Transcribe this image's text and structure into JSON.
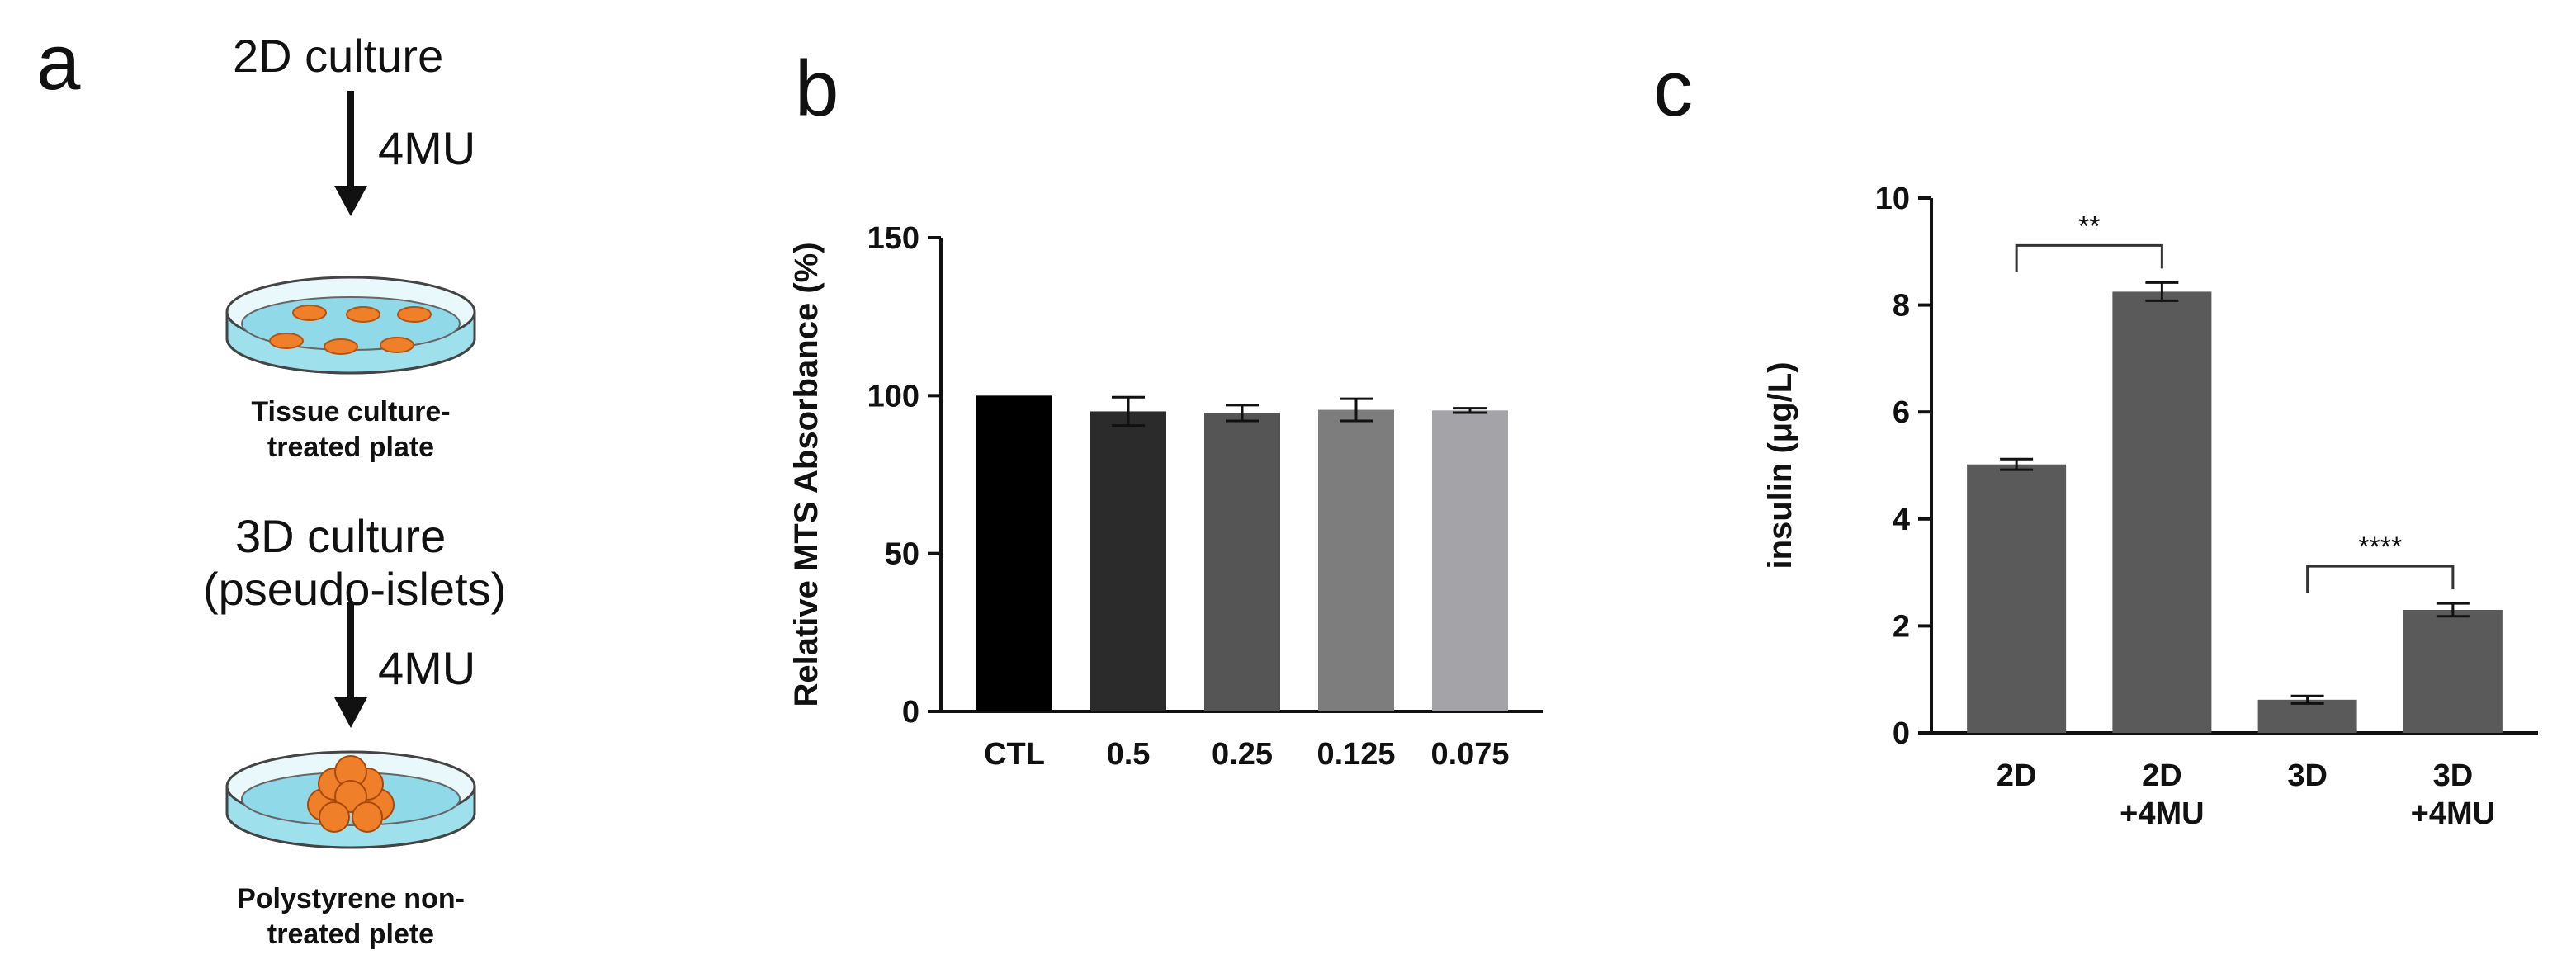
{
  "panel_a": {
    "letter": "a",
    "step1_label": "2D culture",
    "arrow1_label": "4MU",
    "dish1_caption_line1": "Tissue culture-",
    "dish1_caption_line2": "treated plate",
    "step2_label_line1": "3D culture",
    "step2_label_line2": "(pseudo-islets)",
    "arrow2_label": "4MU",
    "dish2_caption_line1": "Polystyrene non-",
    "dish2_caption_line2": "treated plete",
    "dish_color": "#9ee0ec",
    "cell_color": "#f07f2a"
  },
  "panel_b": {
    "letter": "b"
  },
  "panel_c": {
    "letter": "c"
  },
  "chart_data": [
    {
      "type": "bar",
      "panel": "b",
      "title": "",
      "xlabel": "",
      "ylabel": "Relative MTS Absorbance (%)",
      "categories": [
        "CTL",
        "0.5",
        "0.25",
        "0.125",
        "0.075"
      ],
      "values": [
        100,
        95,
        94.5,
        95.5,
        95.3
      ],
      "errors": [
        0,
        4.5,
        2.5,
        3.5,
        0.7
      ],
      "colors": [
        "#000000",
        "#2b2b2b",
        "#555555",
        "#7d7d7d",
        "#a4a4a8"
      ],
      "ylim": [
        0,
        150
      ],
      "yticks": [
        0,
        50,
        100,
        150
      ],
      "grid": false
    },
    {
      "type": "bar",
      "panel": "c",
      "title": "",
      "xlabel": "",
      "ylabel": "insulin (μg/L)",
      "categories": [
        [
          "2D"
        ],
        [
          "2D",
          "+4MU"
        ],
        [
          "3D"
        ],
        [
          "3D",
          "+4MU"
        ]
      ],
      "values": [
        5.02,
        8.25,
        0.62,
        2.3
      ],
      "errors": [
        0.1,
        0.17,
        0.07,
        0.12
      ],
      "colors": [
        "#5a5a5a",
        "#5a5a5a",
        "#5a5a5a",
        "#5a5a5a"
      ],
      "ylim": [
        0,
        10
      ],
      "yticks": [
        0,
        2,
        4,
        6,
        8,
        10
      ],
      "grid": false,
      "significance": [
        {
          "from": 0,
          "to": 1,
          "label": "**"
        },
        {
          "from": 2,
          "to": 3,
          "label": "****"
        }
      ]
    }
  ]
}
